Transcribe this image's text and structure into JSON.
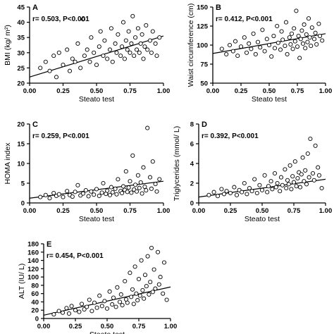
{
  "chart_data": [
    {
      "type": "scatter",
      "panel_label": "A",
      "annotation": "r= 0.503, P<0.001",
      "xlabel": "Steato test",
      "ylabel": "BMI (kg/ m²)",
      "xlim": [
        0,
        1
      ],
      "ylim": [
        20,
        45
      ],
      "xticks": [
        "0.00",
        "0.25",
        "0.50",
        "0.75",
        "1.00"
      ],
      "yticks": [
        "20",
        "25",
        "30",
        "35",
        "40",
        "45"
      ],
      "regression": {
        "x": [
          0,
          1
        ],
        "y": [
          22.0,
          35.5
        ]
      },
      "points": [
        [
          0.08,
          25
        ],
        [
          0.12,
          27
        ],
        [
          0.15,
          24
        ],
        [
          0.18,
          29
        ],
        [
          0.2,
          22
        ],
        [
          0.22,
          30
        ],
        [
          0.25,
          26
        ],
        [
          0.28,
          31
        ],
        [
          0.3,
          24
        ],
        [
          0.32,
          28
        ],
        [
          0.34,
          27
        ],
        [
          0.36,
          33
        ],
        [
          0.38,
          25
        ],
        [
          0.4,
          41
        ],
        [
          0.41,
          29
        ],
        [
          0.43,
          31
        ],
        [
          0.45,
          27
        ],
        [
          0.46,
          35
        ],
        [
          0.48,
          30
        ],
        [
          0.5,
          26
        ],
        [
          0.52,
          32
        ],
        [
          0.53,
          37
        ],
        [
          0.55,
          29
        ],
        [
          0.56,
          34
        ],
        [
          0.58,
          28
        ],
        [
          0.6,
          31
        ],
        [
          0.61,
          38
        ],
        [
          0.62,
          27
        ],
        [
          0.64,
          33
        ],
        [
          0.65,
          30
        ],
        [
          0.66,
          36
        ],
        [
          0.68,
          29
        ],
        [
          0.69,
          32
        ],
        [
          0.7,
          40
        ],
        [
          0.71,
          28
        ],
        [
          0.72,
          34
        ],
        [
          0.73,
          31
        ],
        [
          0.74,
          37
        ],
        [
          0.75,
          30
        ],
        [
          0.76,
          33
        ],
        [
          0.77,
          42
        ],
        [
          0.78,
          29
        ],
        [
          0.79,
          35
        ],
        [
          0.8,
          31
        ],
        [
          0.81,
          38
        ],
        [
          0.82,
          30
        ],
        [
          0.83,
          33
        ],
        [
          0.84,
          36
        ],
        [
          0.85,
          28
        ],
        [
          0.86,
          32
        ],
        [
          0.87,
          39
        ],
        [
          0.88,
          31
        ],
        [
          0.9,
          34
        ],
        [
          0.91,
          30
        ],
        [
          0.92,
          37
        ],
        [
          0.94,
          33
        ],
        [
          0.95,
          29
        ],
        [
          0.97,
          35
        ]
      ]
    },
    {
      "type": "scatter",
      "panel_label": "B",
      "annotation": "r= 0.412, P<0.001",
      "xlabel": "Steato test",
      "ylabel": "Waist circumference (cm)",
      "xlim": [
        0,
        1
      ],
      "ylim": [
        50,
        150
      ],
      "xticks": [
        "0.00",
        "0.25",
        "0.50",
        "0.75",
        "1.00"
      ],
      "yticks": [
        "50",
        "75",
        "100",
        "125",
        "150"
      ],
      "regression": {
        "x": [
          0,
          1
        ],
        "y": [
          89,
          115
        ]
      },
      "points": [
        [
          0.08,
          95
        ],
        [
          0.12,
          88
        ],
        [
          0.15,
          100
        ],
        [
          0.18,
          92
        ],
        [
          0.2,
          105
        ],
        [
          0.22,
          86
        ],
        [
          0.25,
          98
        ],
        [
          0.28,
          110
        ],
        [
          0.3,
          90
        ],
        [
          0.32,
          102
        ],
        [
          0.34,
          95
        ],
        [
          0.36,
          115
        ],
        [
          0.38,
          88
        ],
        [
          0.4,
          104
        ],
        [
          0.42,
          97
        ],
        [
          0.44,
          120
        ],
        [
          0.46,
          92
        ],
        [
          0.48,
          108
        ],
        [
          0.5,
          100
        ],
        [
          0.52,
          85
        ],
        [
          0.54,
          112
        ],
        [
          0.55,
          96
        ],
        [
          0.57,
          125
        ],
        [
          0.58,
          103
        ],
        [
          0.6,
          94
        ],
        [
          0.61,
          118
        ],
        [
          0.62,
          107
        ],
        [
          0.64,
          99
        ],
        [
          0.65,
          130
        ],
        [
          0.66,
          88
        ],
        [
          0.68,
          110
        ],
        [
          0.69,
          101
        ],
        [
          0.7,
          115
        ],
        [
          0.71,
          95
        ],
        [
          0.72,
          122
        ],
        [
          0.73,
          105
        ],
        [
          0.74,
          145
        ],
        [
          0.75,
          98
        ],
        [
          0.76,
          112
        ],
        [
          0.77,
          83
        ],
        [
          0.78,
          108
        ],
        [
          0.79,
          119
        ],
        [
          0.8,
          102
        ],
        [
          0.81,
          127
        ],
        [
          0.82,
          96
        ],
        [
          0.83,
          114
        ],
        [
          0.84,
          104
        ],
        [
          0.85,
          135
        ],
        [
          0.86,
          110
        ],
        [
          0.87,
          99
        ],
        [
          0.88,
          123
        ],
        [
          0.9,
          108
        ],
        [
          0.91,
          116
        ],
        [
          0.92,
          101
        ],
        [
          0.94,
          128
        ],
        [
          0.95,
          112
        ],
        [
          0.97,
          106
        ]
      ]
    },
    {
      "type": "scatter",
      "panel_label": "C",
      "annotation": "r= 0.259, P<0.001",
      "xlabel": "Steato test",
      "ylabel": "HOMA index",
      "xlim": [
        0,
        1
      ],
      "ylim": [
        0,
        20
      ],
      "xticks": [
        "0.00",
        "0.25",
        "0.50",
        "0.75",
        "1.00"
      ],
      "yticks": [
        "0",
        "5",
        "10",
        "15",
        "20"
      ],
      "regression": {
        "x": [
          0,
          1
        ],
        "y": [
          1.2,
          5.5
        ]
      },
      "points": [
        [
          0.08,
          1.5
        ],
        [
          0.12,
          2.0
        ],
        [
          0.15,
          1.2
        ],
        [
          0.18,
          2.5
        ],
        [
          0.2,
          1.8
        ],
        [
          0.22,
          2.2
        ],
        [
          0.25,
          1.5
        ],
        [
          0.28,
          3.0
        ],
        [
          0.3,
          2.0
        ],
        [
          0.32,
          1.6
        ],
        [
          0.34,
          2.8
        ],
        [
          0.36,
          4.5
        ],
        [
          0.38,
          1.9
        ],
        [
          0.4,
          2.4
        ],
        [
          0.42,
          3.2
        ],
        [
          0.44,
          1.7
        ],
        [
          0.46,
          2.9
        ],
        [
          0.48,
          2.1
        ],
        [
          0.5,
          3.5
        ],
        [
          0.52,
          1.8
        ],
        [
          0.54,
          2.6
        ],
        [
          0.55,
          5.0
        ],
        [
          0.57,
          2.3
        ],
        [
          0.58,
          3.1
        ],
        [
          0.6,
          2.0
        ],
        [
          0.61,
          4.0
        ],
        [
          0.62,
          2.7
        ],
        [
          0.64,
          3.6
        ],
        [
          0.65,
          2.2
        ],
        [
          0.66,
          6.0
        ],
        [
          0.68,
          3.0
        ],
        [
          0.69,
          2.5
        ],
        [
          0.7,
          4.2
        ],
        [
          0.71,
          3.3
        ],
        [
          0.72,
          8.0
        ],
        [
          0.73,
          2.8
        ],
        [
          0.74,
          3.9
        ],
        [
          0.75,
          5.5
        ],
        [
          0.76,
          2.6
        ],
        [
          0.77,
          12.0
        ],
        [
          0.78,
          3.4
        ],
        [
          0.79,
          4.6
        ],
        [
          0.8,
          2.9
        ],
        [
          0.81,
          7.0
        ],
        [
          0.82,
          3.8
        ],
        [
          0.83,
          5.2
        ],
        [
          0.84,
          2.4
        ],
        [
          0.85,
          9.0
        ],
        [
          0.86,
          4.1
        ],
        [
          0.87,
          3.2
        ],
        [
          0.88,
          19.0
        ],
        [
          0.9,
          6.5
        ],
        [
          0.91,
          3.6
        ],
        [
          0.92,
          10.5
        ],
        [
          0.94,
          4.8
        ],
        [
          0.95,
          2.9
        ],
        [
          0.97,
          6.0
        ]
      ]
    },
    {
      "type": "scatter",
      "panel_label": "D",
      "annotation": "r= 0.392, P<0.001",
      "xlabel": "Steato test",
      "ylabel": "Triglycerides (mmol/ L)",
      "xlim": [
        0,
        1
      ],
      "ylim": [
        0,
        8
      ],
      "xticks": [
        "0.00",
        "0.25",
        "0.50",
        "0.75",
        "1.00"
      ],
      "yticks": [
        "0",
        "2",
        "4",
        "6",
        "8"
      ],
      "regression": {
        "x": [
          0,
          1
        ],
        "y": [
          0.6,
          2.4
        ]
      },
      "points": [
        [
          0.08,
          0.8
        ],
        [
          0.12,
          1.1
        ],
        [
          0.15,
          0.7
        ],
        [
          0.18,
          1.4
        ],
        [
          0.2,
          0.9
        ],
        [
          0.22,
          1.2
        ],
        [
          0.25,
          1.0
        ],
        [
          0.28,
          1.6
        ],
        [
          0.3,
          0.8
        ],
        [
          0.32,
          1.3
        ],
        [
          0.34,
          1.1
        ],
        [
          0.36,
          2.0
        ],
        [
          0.38,
          0.9
        ],
        [
          0.4,
          1.5
        ],
        [
          0.42,
          1.2
        ],
        [
          0.44,
          2.4
        ],
        [
          0.46,
          1.0
        ],
        [
          0.48,
          1.8
        ],
        [
          0.5,
          1.3
        ],
        [
          0.52,
          2.8
        ],
        [
          0.54,
          1.1
        ],
        [
          0.55,
          1.7
        ],
        [
          0.57,
          2.2
        ],
        [
          0.58,
          1.4
        ],
        [
          0.6,
          3.0
        ],
        [
          0.61,
          1.6
        ],
        [
          0.62,
          2.0
        ],
        [
          0.64,
          1.2
        ],
        [
          0.65,
          2.6
        ],
        [
          0.66,
          1.8
        ],
        [
          0.68,
          3.4
        ],
        [
          0.69,
          1.5
        ],
        [
          0.7,
          2.3
        ],
        [
          0.71,
          1.9
        ],
        [
          0.72,
          3.8
        ],
        [
          0.73,
          1.4
        ],
        [
          0.74,
          2.7
        ],
        [
          0.75,
          2.1
        ],
        [
          0.76,
          4.2
        ],
        [
          0.77,
          1.7
        ],
        [
          0.78,
          2.5
        ],
        [
          0.79,
          3.1
        ],
        [
          0.8,
          1.6
        ],
        [
          0.81,
          2.9
        ],
        [
          0.82,
          4.6
        ],
        [
          0.83,
          2.2
        ],
        [
          0.84,
          3.3
        ],
        [
          0.85,
          1.9
        ],
        [
          0.86,
          5.0
        ],
        [
          0.87,
          2.6
        ],
        [
          0.88,
          6.5
        ],
        [
          0.9,
          3.0
        ],
        [
          0.91,
          2.3
        ],
        [
          0.92,
          5.8
        ],
        [
          0.94,
          3.6
        ],
        [
          0.95,
          2.8
        ],
        [
          0.97,
          1.5
        ]
      ]
    },
    {
      "type": "scatter",
      "panel_label": "E",
      "annotation": "r= 0.454, P<0.001",
      "xlabel": "Steato test",
      "ylabel": "ALT (IU/ L)",
      "xlim": [
        0,
        1
      ],
      "ylim": [
        0,
        180
      ],
      "xticks": [
        "0.00",
        "0.25",
        "0.50",
        "0.75",
        "1.00"
      ],
      "yticks": [
        "0",
        "20",
        "40",
        "60",
        "80",
        "100",
        "120",
        "140",
        "160",
        "180"
      ],
      "regression": {
        "x": [
          0,
          1
        ],
        "y": [
          8,
          76
        ]
      },
      "points": [
        [
          0.08,
          10
        ],
        [
          0.12,
          18
        ],
        [
          0.15,
          14
        ],
        [
          0.18,
          25
        ],
        [
          0.2,
          12
        ],
        [
          0.22,
          30
        ],
        [
          0.25,
          20
        ],
        [
          0.28,
          16
        ],
        [
          0.3,
          35
        ],
        [
          0.32,
          22
        ],
        [
          0.34,
          28
        ],
        [
          0.36,
          45
        ],
        [
          0.38,
          18
        ],
        [
          0.4,
          38
        ],
        [
          0.42,
          26
        ],
        [
          0.44,
          55
        ],
        [
          0.46,
          30
        ],
        [
          0.48,
          42
        ],
        [
          0.5,
          24
        ],
        [
          0.52,
          65
        ],
        [
          0.54,
          34
        ],
        [
          0.55,
          50
        ],
        [
          0.57,
          28
        ],
        [
          0.58,
          75
        ],
        [
          0.6,
          40
        ],
        [
          0.61,
          58
        ],
        [
          0.62,
          32
        ],
        [
          0.64,
          90
        ],
        [
          0.65,
          46
        ],
        [
          0.66,
          38
        ],
        [
          0.68,
          110
        ],
        [
          0.69,
          52
        ],
        [
          0.7,
          70
        ],
        [
          0.71,
          35
        ],
        [
          0.72,
          125
        ],
        [
          0.73,
          60
        ],
        [
          0.74,
          44
        ],
        [
          0.75,
          95
        ],
        [
          0.76,
          55
        ],
        [
          0.77,
          140
        ],
        [
          0.78,
          68
        ],
        [
          0.79,
          48
        ],
        [
          0.8,
          105
        ],
        [
          0.81,
          78
        ],
        [
          0.82,
          150
        ],
        [
          0.83,
          58
        ],
        [
          0.84,
          88
        ],
        [
          0.85,
          170
        ],
        [
          0.86,
          64
        ],
        [
          0.87,
          118
        ],
        [
          0.88,
          72
        ],
        [
          0.9,
          160
        ],
        [
          0.91,
          82
        ],
        [
          0.92,
          100
        ],
        [
          0.94,
          60
        ],
        [
          0.95,
          135
        ],
        [
          0.97,
          45
        ]
      ]
    }
  ]
}
